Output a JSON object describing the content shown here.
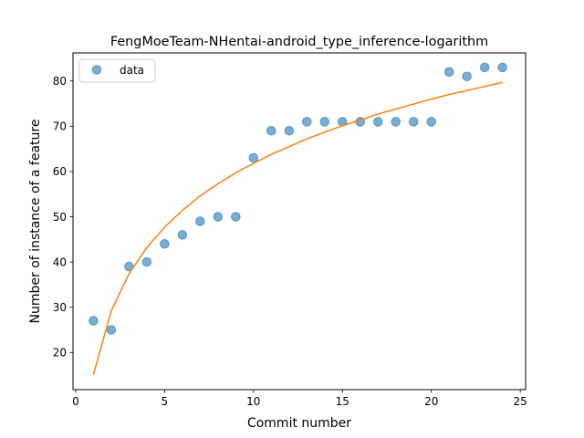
{
  "chart_data": {
    "type": "scatter",
    "title": "FengMoeTeam-NHentai-android_type_inference-logarithm",
    "xlabel": "Commit number",
    "ylabel": "Number of instance of a feature",
    "xlim": [
      -0.15,
      25.3
    ],
    "ylim": [
      11.8,
      86.2
    ],
    "xticks": [
      0,
      5,
      10,
      15,
      20,
      25
    ],
    "yticks": [
      20,
      30,
      40,
      50,
      60,
      70,
      80
    ],
    "grid": false,
    "legend_position": "upper-left",
    "series": [
      {
        "name": "data",
        "kind": "scatter",
        "color": "#1f77b4",
        "x": [
          1,
          2,
          3,
          4,
          5,
          6,
          7,
          8,
          9,
          10,
          11,
          12,
          13,
          14,
          15,
          16,
          17,
          18,
          19,
          20,
          21,
          22,
          23,
          24
        ],
        "y": [
          27,
          25,
          39,
          40,
          44,
          46,
          49,
          50,
          50,
          63,
          69,
          69,
          71,
          71,
          71,
          71,
          71,
          71,
          71,
          71,
          82,
          81,
          83,
          83
        ]
      },
      {
        "kind": "line",
        "color": "#ff7f0e",
        "x": [
          1,
          2,
          3,
          4,
          5,
          6,
          7,
          8,
          9,
          10,
          11,
          12,
          13,
          14,
          15,
          16,
          17,
          18,
          19,
          20,
          21,
          22,
          23,
          24
        ],
        "y": [
          15.1,
          29.2,
          37.4,
          43.2,
          47.7,
          51.4,
          54.6,
          57.3,
          59.7,
          61.8,
          63.8,
          65.5,
          67.2,
          68.7,
          70.1,
          71.4,
          72.7,
          73.8,
          74.9,
          76.0,
          77.0,
          77.9,
          78.8,
          79.7
        ]
      }
    ]
  }
}
